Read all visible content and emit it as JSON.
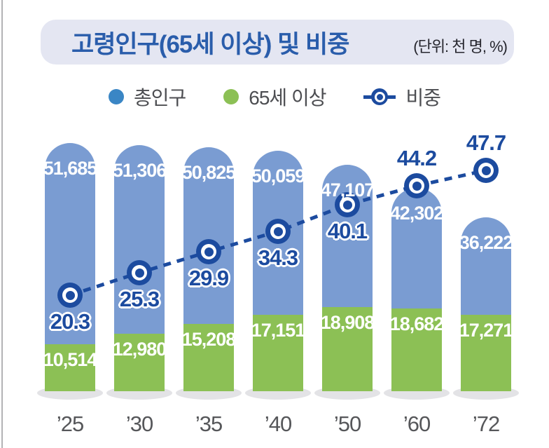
{
  "header": {
    "title": "고령인구(65세 이상) 및 비중",
    "unit": "(단위: 천 명, %)",
    "bg_color": "#e4e6f2",
    "title_color": "#2a5dab"
  },
  "legend": {
    "items": [
      {
        "label": "총인구",
        "marker": "dot",
        "color": "#3a86c5"
      },
      {
        "label": "65세 이상",
        "marker": "dot",
        "color": "#8cc055"
      },
      {
        "label": "비중",
        "marker": "bullseye",
        "color": "#1c4b9f"
      }
    ]
  },
  "chart_data": {
    "type": "bar",
    "title": "고령인구(65세 이상) 및 비중",
    "unit_label": "(단위: 천 명, %)",
    "categories": [
      "’25",
      "’30",
      "’35",
      "’40",
      "’50",
      "’60",
      "’72"
    ],
    "series": [
      {
        "name": "총인구",
        "kind": "bar",
        "color": "#7a9cd2",
        "values": [
          51685,
          51306,
          50825,
          50059,
          47107,
          42302,
          36222
        ]
      },
      {
        "name": "65세 이상",
        "kind": "bar",
        "color": "#8cc055",
        "values": [
          10514,
          12980,
          15208,
          17151,
          18908,
          18682,
          17271
        ]
      },
      {
        "name": "비중",
        "kind": "line-markers",
        "color": "#1c4b9f",
        "line_style": "dashed",
        "values": [
          20.3,
          25.3,
          29.9,
          34.3,
          40.1,
          44.2,
          47.7
        ],
        "label_above_marker": [
          false,
          false,
          false,
          false,
          false,
          true,
          true
        ]
      }
    ],
    "legend_position": "top",
    "grid": false,
    "bar_corner": "rounded-top"
  }
}
